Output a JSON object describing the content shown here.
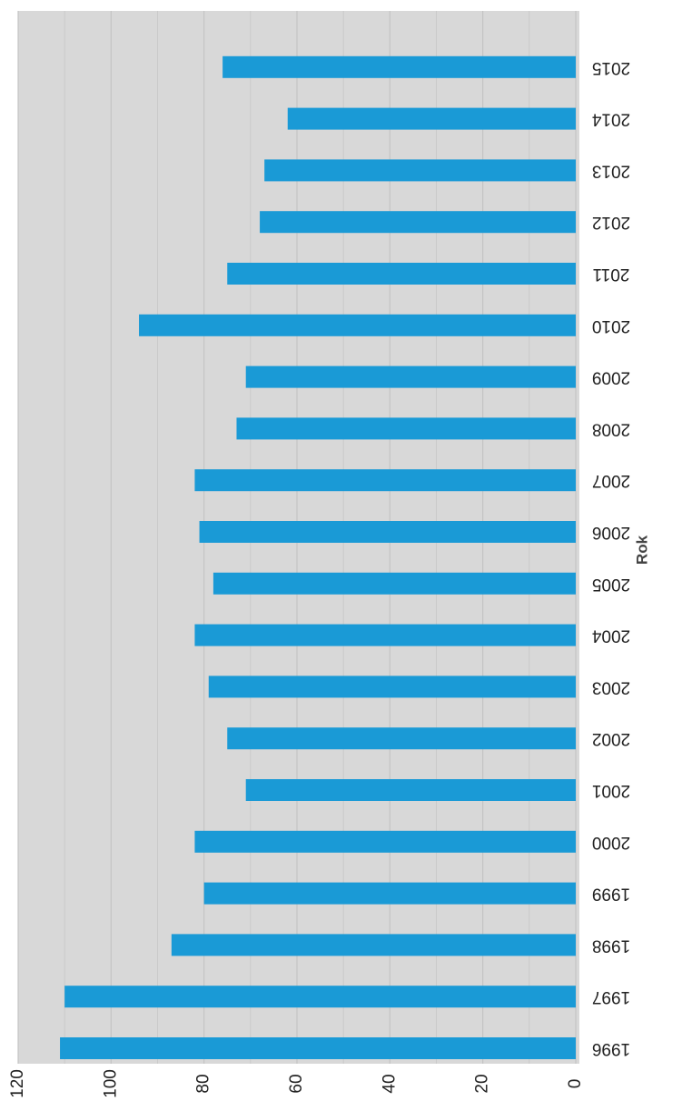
{
  "chart_data": {
    "type": "bar",
    "orientation": "rotated-90-clockwise",
    "title": "",
    "xlabel": "Rok",
    "ylabel": "",
    "categories": [
      "1996",
      "1997",
      "1998",
      "1999",
      "2000",
      "2001",
      "2002",
      "2003",
      "2004",
      "2005",
      "2006",
      "2007",
      "2008",
      "2009",
      "2010",
      "2011",
      "2012",
      "2013",
      "2014",
      "2015"
    ],
    "values": [
      111,
      110,
      87,
      80,
      82,
      71,
      75,
      79,
      82,
      78,
      81,
      82,
      73,
      71,
      94,
      75,
      68,
      67,
      62,
      76
    ],
    "ylim": [
      0,
      120
    ],
    "yticks": [
      0,
      20,
      40,
      60,
      80,
      100,
      120
    ],
    "grid": true,
    "legend": "none",
    "colors": {
      "bar": "#1a9ad6",
      "plot_background": "#d8d8d8",
      "gridline": "#c4c4c4"
    }
  }
}
